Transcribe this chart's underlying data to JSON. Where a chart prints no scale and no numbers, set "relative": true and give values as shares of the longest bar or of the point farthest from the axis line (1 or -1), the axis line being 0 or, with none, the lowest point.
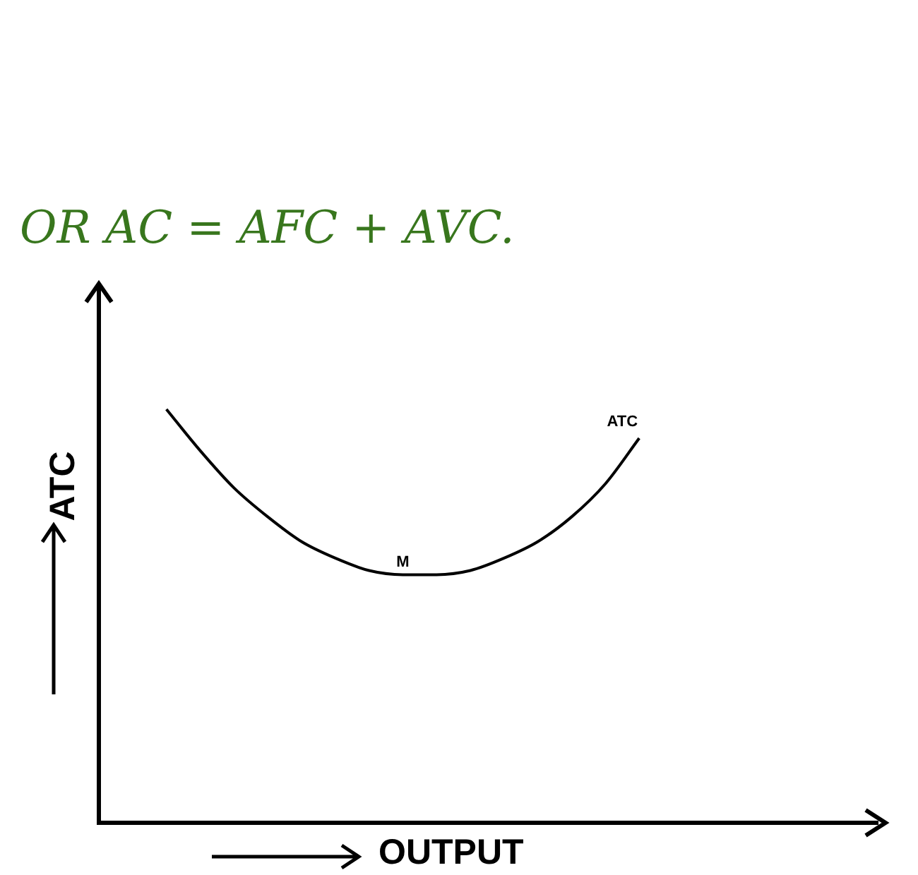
{
  "chart_data": {
    "type": "line",
    "title": "OR AC = AFC + AVC.",
    "xlabel": "OUTPUT",
    "ylabel": "ATC",
    "relative": true,
    "categories": [
      null,
      null,
      null,
      null,
      null,
      null,
      null,
      null,
      null,
      null,
      null,
      null,
      null,
      null,
      null,
      null,
      null,
      null,
      null,
      null,
      null,
      null,
      null,
      null
    ],
    "series": [
      {
        "name": "ATC",
        "color": "#000000",
        "values": [
          null,
          null,
          1,
          0.9,
          0.81,
          0.74,
          0.68,
          0.64,
          0.61,
          0.6,
          0.6,
          0.61,
          0.64,
          0.68,
          0.74,
          0.82,
          0.93,
          null,
          null,
          null,
          null,
          null,
          null,
          null
        ]
      }
    ],
    "annotations": [
      {
        "text": "M",
        "y": 0.6
      }
    ],
    "legend": false,
    "marker": "none",
    "line_style": "solid"
  }
}
